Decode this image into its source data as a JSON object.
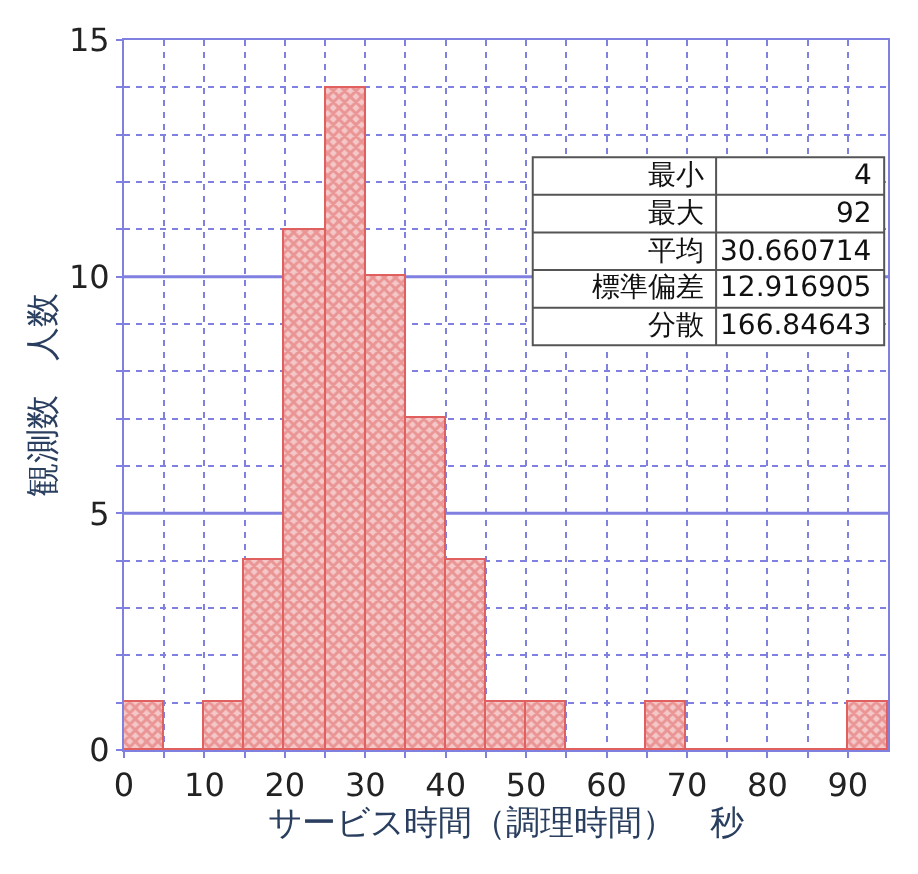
{
  "chart_data": {
    "type": "histogram",
    "xlabel": "サービス時間（調理時間）　秒",
    "ylabel": "観測数　人数",
    "bins": [
      0,
      5,
      10,
      15,
      20,
      25,
      30,
      35,
      40,
      45,
      50,
      55,
      60,
      65,
      70,
      75,
      80,
      85,
      90,
      95
    ],
    "values": [
      1,
      0,
      1,
      4,
      11,
      14,
      10,
      7,
      4,
      1,
      1,
      0,
      0,
      1,
      0,
      0,
      0,
      0,
      1
    ],
    "color": "#e06060",
    "xlim": [
      0,
      95
    ],
    "xticks": [
      0,
      {
        "value": 5,
        "label": null
      },
      10,
      {
        "value": 15,
        "label": null
      },
      20,
      {
        "value": 25,
        "label": null
      },
      30,
      {
        "value": 35,
        "label": null
      },
      40,
      {
        "value": 45,
        "label": null
      },
      50,
      {
        "value": 55,
        "label": null
      },
      60,
      {
        "value": 65,
        "label": null
      },
      70,
      {
        "value": 75,
        "label": null
      },
      80,
      {
        "value": 85,
        "label": null
      },
      90
    ],
    "ylim": [
      0,
      15
    ],
    "yticks": [
      0,
      {
        "value": 1,
        "label": null
      },
      {
        "value": 2,
        "label": null
      },
      {
        "value": 3,
        "label": null
      },
      {
        "value": 4,
        "label": null
      },
      5,
      {
        "value": 6,
        "label": null
      },
      {
        "value": 7,
        "label": null
      },
      {
        "value": 8,
        "label": null
      },
      {
        "value": 9,
        "label": null
      },
      10,
      {
        "value": 11,
        "label": null
      },
      {
        "value": 12,
        "label": null
      },
      {
        "value": 13,
        "label": null
      },
      {
        "value": 14,
        "label": null
      },
      15
    ],
    "grid": true,
    "annotations": [
      "最小",
      "4",
      "最大",
      "92",
      "平均",
      "30.660714",
      "標準偏差",
      "12.916905",
      "分散",
      "166.84643"
    ]
  }
}
